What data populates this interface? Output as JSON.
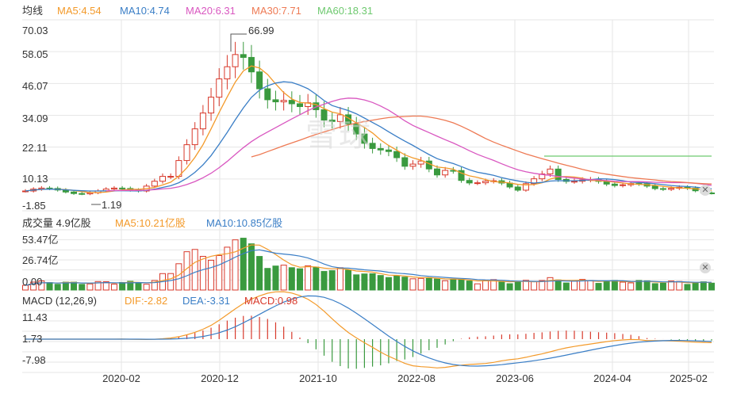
{
  "colors": {
    "up": "#d8392b",
    "down": "#3a9a3f",
    "ma5": "#f39a2a",
    "ma10": "#3a7ec6",
    "ma20": "#d957c0",
    "ma30": "#ee7a54",
    "ma60": "#6ec96f",
    "grid": "#e6e6e6"
  },
  "price_panel": {
    "title": "均线",
    "legend": [
      {
        "key": "ma5",
        "text": "MA5:4.54"
      },
      {
        "key": "ma10",
        "text": "MA10:4.74"
      },
      {
        "key": "ma20",
        "text": "MA20:6.31"
      },
      {
        "key": "ma30",
        "text": "MA30:7.71"
      },
      {
        "key": "ma60",
        "text": "MA60:18.31"
      }
    ],
    "yticks": [
      "70.03",
      "58.05",
      "46.07",
      "34.09",
      "22.11",
      "10.13",
      "-1.85"
    ],
    "high_label": "66.99",
    "low_label": "1.19",
    "watermark": "雪球",
    "close_icon": "close-icon"
  },
  "volume_panel": {
    "title": "成交量 4.9亿股",
    "legend": [
      {
        "key": "ma5",
        "text": "MA5:10.21亿股"
      },
      {
        "key": "ma10",
        "text": "MA10:10.85亿股"
      }
    ],
    "yticks": [
      "53.47亿",
      "26.74亿",
      "0.00"
    ],
    "close_icon": "close-icon"
  },
  "macd_panel": {
    "title": "MACD (12,26,9)",
    "legend": [
      {
        "key": "ma5",
        "text": "DIF:-2.82"
      },
      {
        "key": "ma10",
        "text": "DEA:-3.31"
      },
      {
        "key": "up",
        "text": "MACD:0.98"
      }
    ],
    "yticks": [
      "11.43",
      "1.73",
      "-7.98"
    ]
  },
  "x_axis": [
    "2020-02",
    "2020-12",
    "2021-10",
    "2022-08",
    "2023-06",
    "2024-04",
    "2025-02"
  ],
  "chart_data": [
    {
      "type": "candlestick",
      "title": "均线",
      "x_ticks": [
        "2020-02",
        "2020-12",
        "2021-10",
        "2022-08",
        "2023-06",
        "2024-04",
        "2025-02"
      ],
      "ylim": [
        -1.85,
        70.03
      ],
      "annotations": [
        {
          "text": "66.99",
          "kind": "high"
        },
        {
          "text": "1.19",
          "kind": "low"
        }
      ],
      "series": [
        {
          "name": "MA5",
          "last": 4.54
        },
        {
          "name": "MA10",
          "last": 4.74
        },
        {
          "name": "MA20",
          "last": 6.31
        },
        {
          "name": "MA30",
          "last": 7.71
        },
        {
          "name": "MA60",
          "last": 18.31
        }
      ]
    },
    {
      "type": "bar",
      "title": "成交量 4.9亿股",
      "ylim": [
        0,
        53.47
      ],
      "series": [
        {
          "name": "MA5",
          "last": "10.21亿股"
        },
        {
          "name": "MA10",
          "last": "10.85亿股"
        }
      ]
    },
    {
      "type": "bar",
      "title": "MACD (12,26,9)",
      "ylim": [
        -7.98,
        11.43
      ],
      "series": [
        {
          "name": "DIF",
          "last": -2.82
        },
        {
          "name": "DEA",
          "last": -3.31
        },
        {
          "name": "MACD",
          "last": 0.98
        }
      ]
    }
  ]
}
